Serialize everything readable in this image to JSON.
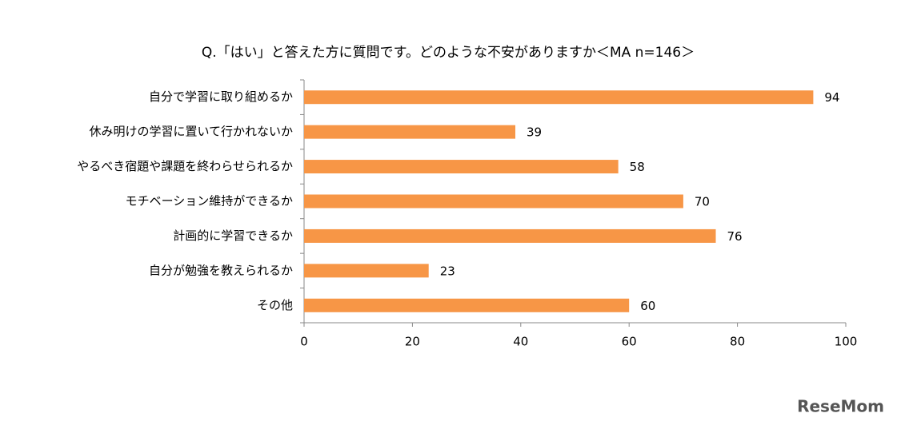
{
  "chart_data": {
    "type": "bar",
    "orientation": "horizontal",
    "title": "Q.「はい」と答えた方に質問です。どのような不安がありますか＜MA n=146＞",
    "categories": [
      "自分で学習に取り組めるか",
      "休み明けの学習に置いて行かれないか",
      "やるべき宿題や課題を終わらせられるか",
      "モチベーション維持ができるか",
      "計画的に学習できるか",
      "自分が勉強を教えられるか",
      "その他"
    ],
    "values": [
      94,
      39,
      58,
      70,
      76,
      23,
      60
    ],
    "color": "#f79646",
    "xlim": [
      0,
      100
    ],
    "xticks": [
      0,
      20,
      40,
      60,
      80,
      100
    ],
    "grid": false
  },
  "watermark": "ReseMom"
}
